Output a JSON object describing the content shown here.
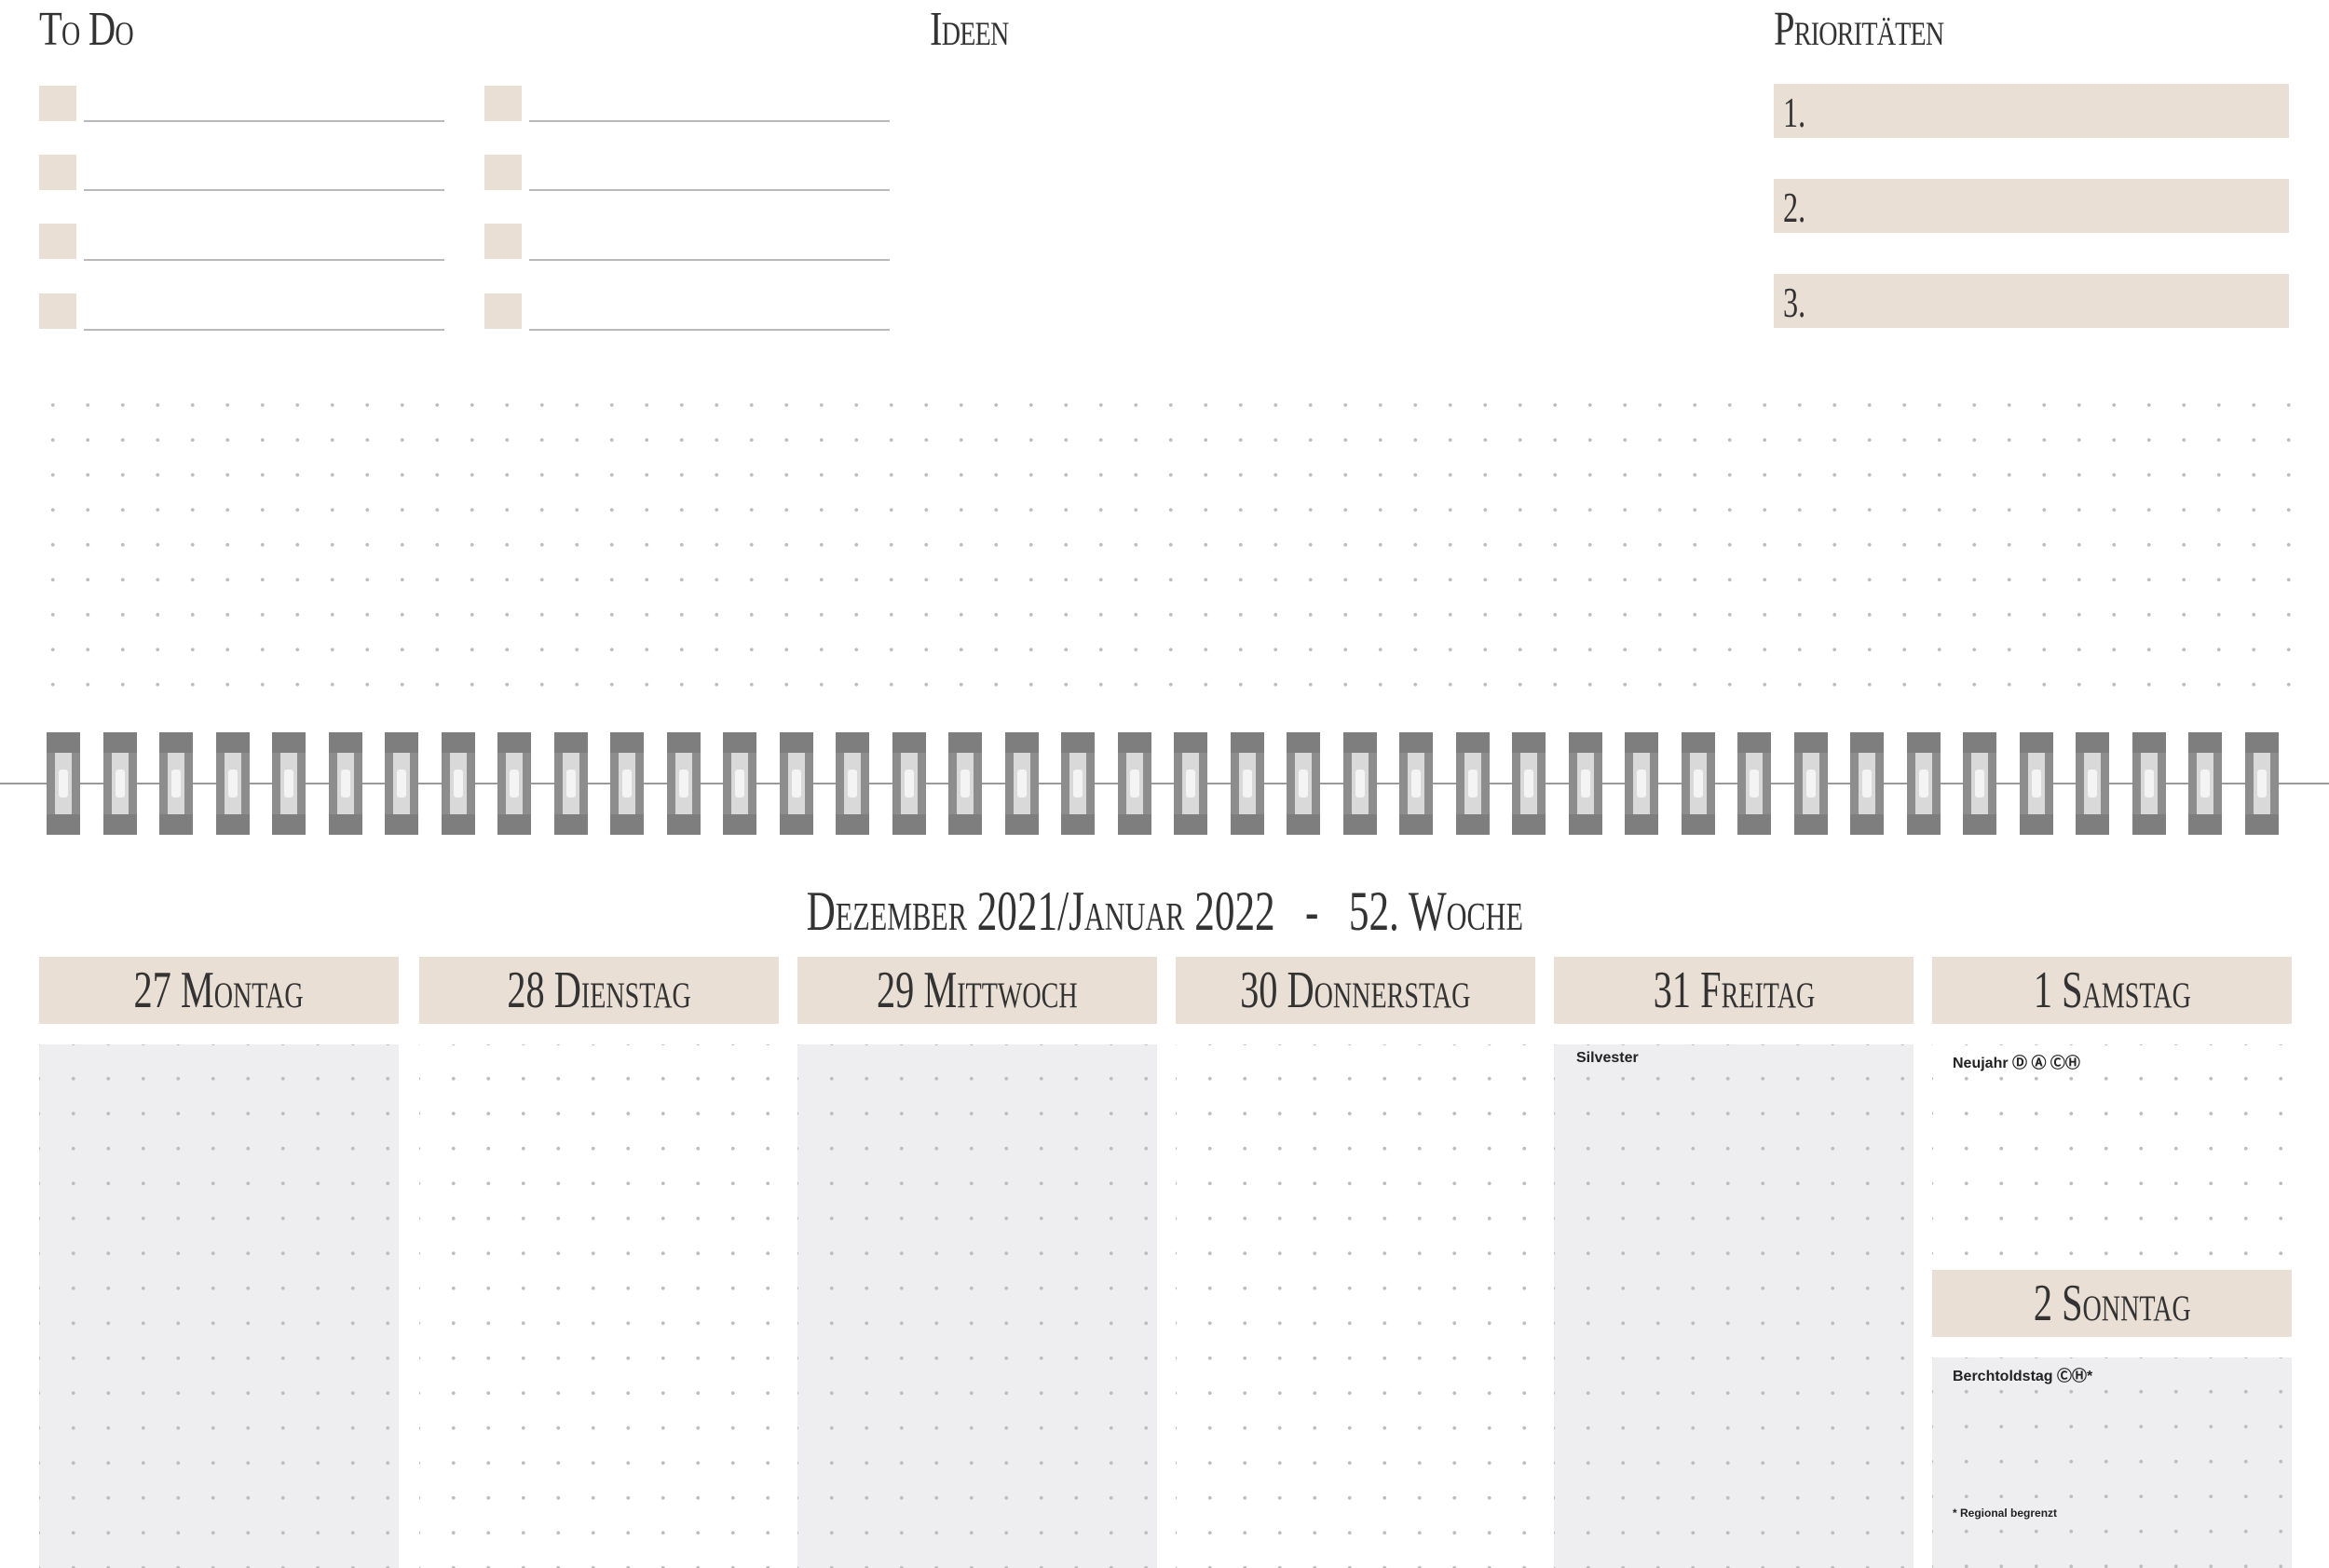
{
  "sections": {
    "todo_title": "To Do",
    "ideas_title": "Ideen",
    "priorities_title": "Prioritäten"
  },
  "priorities": [
    "1.",
    "2.",
    "3."
  ],
  "week": {
    "title": "Dezember 2021/Januar 2022",
    "separator": "-",
    "week_label": "52. Woche"
  },
  "days": [
    {
      "label": "27 Montag",
      "note": ""
    },
    {
      "label": "28 Dienstag",
      "note": ""
    },
    {
      "label": "29 Mittwoch",
      "note": ""
    },
    {
      "label": "30 Donnerstag",
      "note": ""
    },
    {
      "label": "31 Freitag",
      "note": "Silvester"
    },
    {
      "label": "1 Samstag",
      "note": "Neujahr Ⓓ Ⓐ ⒸⒽ"
    },
    {
      "label": "2 Sonntag",
      "note": "Berchtoldstag ⒸⒽ*"
    }
  ],
  "footnote": "* Regional begrenzt",
  "colors": {
    "accent": "#e9dfd5",
    "shade": "#eeeef1",
    "ring": "#7e7e7e"
  }
}
